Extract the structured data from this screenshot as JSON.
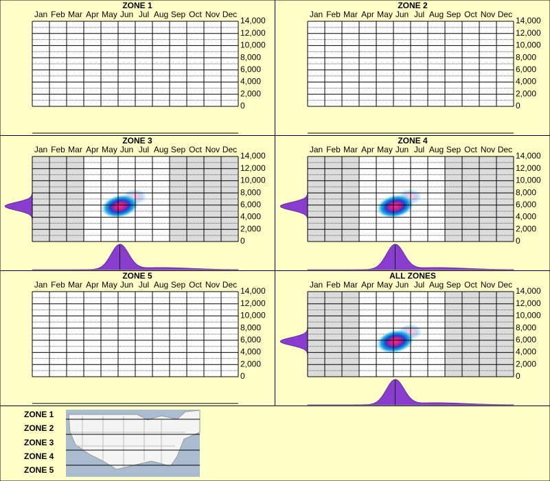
{
  "chart_data": [
    {
      "type": "heatmap",
      "title": "ZONE 1",
      "categories": [
        "Jan",
        "Feb",
        "Mar",
        "Apr",
        "May",
        "Jun",
        "Jul",
        "Aug",
        "Sep",
        "Oct",
        "Nov",
        "Dec"
      ],
      "ylim": [
        0,
        14000
      ],
      "yticks": [
        0,
        {
          "value": 2000,
          "label": "2,000"
        },
        {
          "value": 4000,
          "label": "4,000"
        },
        {
          "value": 6000,
          "label": "6,000"
        },
        {
          "value": 8000,
          "label": "8,000"
        },
        {
          "value": 10000,
          "label": "10,000"
        },
        {
          "value": 12000,
          "label": "12,000"
        },
        {
          "value": 14000,
          "label": "14,000"
        }
      ]
    },
    {
      "type": "heatmap",
      "title": "ZONE 2",
      "categories": [
        "Jan",
        "Feb",
        "Mar",
        "Apr",
        "May",
        "Jun",
        "Jul",
        "Aug",
        "Sep",
        "Oct",
        "Nov",
        "Dec"
      ],
      "ylim": [
        0,
        14000
      ],
      "yticks": [
        0,
        {
          "value": 2000,
          "label": "2,000"
        },
        {
          "value": 4000,
          "label": "4,000"
        },
        {
          "value": 6000,
          "label": "6,000"
        },
        {
          "value": 8000,
          "label": "8,000"
        },
        {
          "value": 10000,
          "label": "10,000"
        },
        {
          "value": 12000,
          "label": "12,000"
        },
        {
          "value": 14000,
          "label": "14,000"
        }
      ]
    },
    {
      "type": "heatmap",
      "title": "ZONE 3",
      "categories": [
        "Jan",
        "Feb",
        "Mar",
        "Apr",
        "May",
        "Jun",
        "Jul",
        "Aug",
        "Sep",
        "Oct",
        "Nov",
        "Dec"
      ],
      "ylim": [
        0,
        14000
      ],
      "yticks": [
        0,
        {
          "value": 2000,
          "label": "2,000"
        },
        {
          "value": 4000,
          "label": "4,000"
        },
        {
          "value": 6000,
          "label": "6,000"
        },
        {
          "value": 8000,
          "label": "8,000"
        },
        {
          "value": 10000,
          "label": "10,000"
        },
        {
          "value": 12000,
          "label": "12,000"
        },
        {
          "value": 14000,
          "label": "14,000"
        }
      ],
      "shaded": [
        true,
        true,
        true,
        false,
        false,
        false,
        false,
        false,
        true,
        true,
        true,
        true
      ],
      "peak": {
        "x": 4.6,
        "y": 5800
      }
    },
    {
      "type": "heatmap",
      "title": "ZONE 4",
      "categories": [
        "Jan",
        "Feb",
        "Mar",
        "Apr",
        "May",
        "Jun",
        "Jul",
        "Aug",
        "Sep",
        "Oct",
        "Nov",
        "Dec"
      ],
      "ylim": [
        0,
        14000
      ],
      "yticks": [
        0,
        {
          "value": 2000,
          "label": "2,000"
        },
        {
          "value": 4000,
          "label": "4,000"
        },
        {
          "value": 6000,
          "label": "6,000"
        },
        {
          "value": 8000,
          "label": "8,000"
        },
        {
          "value": 10000,
          "label": "10,000"
        },
        {
          "value": 12000,
          "label": "12,000"
        },
        {
          "value": 14000,
          "label": "14,000"
        }
      ],
      "shaded": [
        true,
        true,
        true,
        false,
        false,
        false,
        false,
        false,
        true,
        true,
        true,
        true
      ],
      "peak": {
        "x": 4.6,
        "y": 5800
      }
    },
    {
      "type": "heatmap",
      "title": "ZONE 5",
      "categories": [
        "Jan",
        "Feb",
        "Mar",
        "Apr",
        "May",
        "Jun",
        "Jul",
        "Aug",
        "Sep",
        "Oct",
        "Nov",
        "Dec"
      ],
      "ylim": [
        0,
        14000
      ],
      "yticks": [
        0,
        {
          "value": 2000,
          "label": "2,000"
        },
        {
          "value": 4000,
          "label": "4,000"
        },
        {
          "value": 6000,
          "label": "6,000"
        },
        {
          "value": 8000,
          "label": "8,000"
        },
        {
          "value": 10000,
          "label": "10,000"
        },
        {
          "value": 12000,
          "label": "12,000"
        },
        {
          "value": 14000,
          "label": "14,000"
        }
      ]
    },
    {
      "type": "heatmap",
      "title": "ALL ZONES",
      "categories": [
        "Jan",
        "Feb",
        "Mar",
        "Apr",
        "May",
        "Jun",
        "Jul",
        "Aug",
        "Sep",
        "Oct",
        "Nov",
        "Dec"
      ],
      "ylim": [
        0,
        14000
      ],
      "yticks": [
        0,
        {
          "value": 2000,
          "label": "2,000"
        },
        {
          "value": 4000,
          "label": "4,000"
        },
        {
          "value": 6000,
          "label": "6,000"
        },
        {
          "value": 8000,
          "label": "8,000"
        },
        {
          "value": 10000,
          "label": "10,000"
        },
        {
          "value": 12000,
          "label": "12,000"
        },
        {
          "value": 14000,
          "label": "14,000"
        }
      ],
      "shaded": [
        true,
        true,
        true,
        false,
        false,
        false,
        false,
        false,
        true,
        true,
        true,
        true
      ],
      "peak": {
        "x": 4.6,
        "y": 5800
      }
    }
  ],
  "legend": {
    "zones": [
      "ZONE 1",
      "ZONE 2",
      "ZONE 3",
      "ZONE 4",
      "ZONE 5"
    ]
  }
}
